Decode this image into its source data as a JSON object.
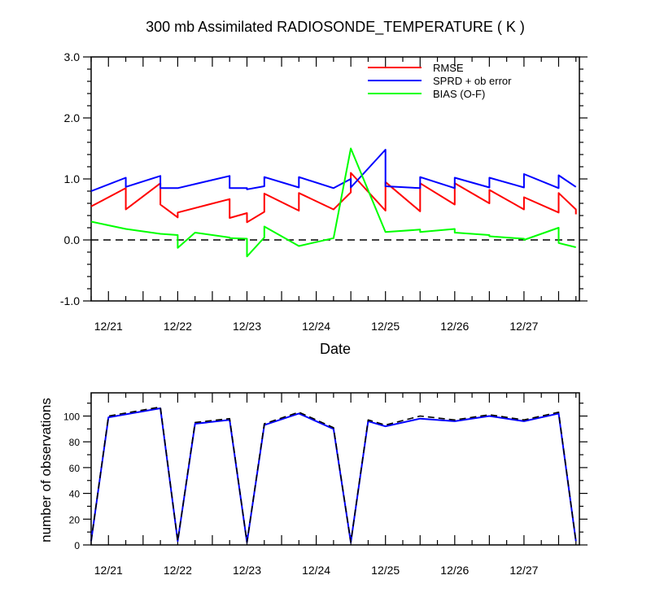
{
  "title": "300 mb Assimilated RADIOSONDE_TEMPERATURE ( K )",
  "chart_data": [
    {
      "type": "line",
      "xlabel": "Date",
      "ylabel": "",
      "x_range": [
        -0.25,
        6.8
      ],
      "ylim": [
        -1.0,
        3.0
      ],
      "y_ticks": [
        "-1.0",
        "0.0",
        "1.0",
        "2.0",
        "3.0"
      ],
      "y_tick_values": [
        -1.0,
        0.0,
        1.0,
        2.0,
        3.0
      ],
      "x_tick_labels": [
        "12/21",
        "12/22",
        "12/23",
        "12/24",
        "12/25",
        "12/26",
        "12/27"
      ],
      "x_tick_values": [
        0,
        1,
        2,
        3,
        4,
        5,
        6
      ],
      "zero_line": "dashed",
      "legend_position": "top-right",
      "series": [
        {
          "name": "RMSE",
          "color": "#ff0000",
          "x": [
            -0.25,
            0.25,
            0.25,
            0.75,
            0.75,
            1.0,
            1.0,
            1.75,
            1.75,
            2.0,
            2.0,
            2.25,
            2.25,
            2.75,
            2.75,
            3.25,
            3.5,
            3.5,
            4.0,
            4.0,
            4.5,
            4.5,
            5.0,
            5.0,
            5.5,
            5.5,
            6.0,
            6.0,
            6.5,
            6.5,
            6.75,
            6.75
          ],
          "y": [
            0.55,
            0.85,
            0.5,
            0.93,
            0.58,
            0.37,
            0.45,
            0.67,
            0.36,
            0.44,
            0.29,
            0.46,
            0.76,
            0.48,
            0.77,
            0.5,
            0.78,
            1.1,
            0.48,
            0.95,
            0.47,
            0.93,
            0.58,
            0.93,
            0.6,
            0.82,
            0.5,
            0.7,
            0.45,
            0.77,
            0.5,
            0.42
          ]
        },
        {
          "name": "SPRD + ob error",
          "color": "#0000ff",
          "x": [
            -0.25,
            0.25,
            0.25,
            0.75,
            0.75,
            1.0,
            1.0,
            1.75,
            1.75,
            2.0,
            2.0,
            2.25,
            2.25,
            2.75,
            2.75,
            3.25,
            3.5,
            3.5,
            4.0,
            4.0,
            4.5,
            4.5,
            5.0,
            5.0,
            5.5,
            5.5,
            6.0,
            6.0,
            6.5,
            6.5,
            6.75,
            6.75
          ],
          "y": [
            0.8,
            1.02,
            0.87,
            1.05,
            0.85,
            0.85,
            0.85,
            1.05,
            0.85,
            0.85,
            0.83,
            0.88,
            1.03,
            0.86,
            1.03,
            0.85,
            1.0,
            0.86,
            1.48,
            0.88,
            0.85,
            1.03,
            0.85,
            1.02,
            0.86,
            1.02,
            0.86,
            1.08,
            0.85,
            1.06,
            0.87,
            0.87
          ]
        },
        {
          "name": "BIAS (O-F)",
          "color": "#00ff00",
          "x": [
            -0.25,
            0.25,
            0.75,
            1.0,
            1.0,
            1.25,
            1.75,
            1.75,
            2.0,
            2.0,
            2.25,
            2.25,
            2.75,
            3.25,
            3.5,
            3.5,
            4.0,
            4.0,
            4.5,
            4.5,
            5.0,
            5.0,
            5.5,
            5.5,
            6.0,
            6.0,
            6.5,
            6.5,
            6.75
          ],
          "y": [
            0.3,
            0.18,
            0.1,
            0.08,
            -0.13,
            0.12,
            0.04,
            0.03,
            0.02,
            -0.27,
            0.04,
            0.22,
            -0.1,
            0.03,
            1.5,
            1.5,
            0.13,
            0.13,
            0.17,
            0.13,
            0.18,
            0.12,
            0.08,
            0.06,
            0.02,
            0.0,
            0.2,
            -0.05,
            -0.12
          ]
        }
      ]
    },
    {
      "type": "line",
      "xlabel": "",
      "ylabel": "number of observations",
      "x_range": [
        -0.25,
        6.8
      ],
      "ylim": [
        0,
        118
      ],
      "y_ticks": [
        "0",
        "20",
        "40",
        "60",
        "80",
        "100"
      ],
      "y_tick_values": [
        0,
        20,
        40,
        60,
        80,
        100
      ],
      "x_tick_labels": [
        "12/21",
        "12/22",
        "12/23",
        "12/24",
        "12/25",
        "12/26",
        "12/27"
      ],
      "x_tick_values": [
        0,
        1,
        2,
        3,
        4,
        5,
        6
      ],
      "series": [
        {
          "name": "",
          "color": "#0000ff",
          "style": "solid",
          "x": [
            -0.25,
            0.0,
            0.75,
            1.0,
            1.25,
            1.75,
            2.0,
            2.25,
            2.75,
            3.25,
            3.5,
            3.75,
            4.0,
            4.5,
            5.0,
            5.5,
            6.0,
            6.5,
            6.75
          ],
          "y": [
            3,
            99,
            106,
            3,
            94,
            97,
            2,
            93,
            102,
            90,
            2,
            96,
            92,
            98,
            96,
            100,
            96,
            102,
            3
          ]
        },
        {
          "name": "",
          "color": "#000000",
          "style": "dashed",
          "x": [
            -0.25,
            0.0,
            0.75,
            1.0,
            1.25,
            1.75,
            2.0,
            2.25,
            2.75,
            3.25,
            3.5,
            3.75,
            4.0,
            4.5,
            5.0,
            5.5,
            6.0,
            6.5,
            6.75
          ],
          "y": [
            3,
            100,
            107,
            3,
            95,
            98,
            2,
            94,
            103,
            91,
            2,
            97,
            93,
            100,
            97,
            101,
            97,
            103,
            3
          ]
        }
      ]
    }
  ]
}
